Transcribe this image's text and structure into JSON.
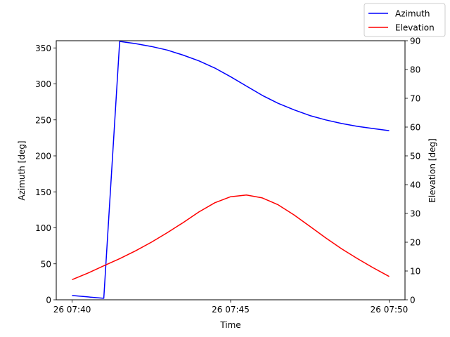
{
  "chart_data": {
    "type": "line",
    "title": "",
    "xlabel": "Time",
    "ylabel_left": "Azimuth [deg]",
    "ylabel_right": "Elevation [deg]",
    "x_ticks": [
      "26 07:40",
      "26 07:45",
      "26 07:50"
    ],
    "x_range_minutes": [
      -0.5,
      10.5
    ],
    "y_left_range": [
      0,
      360
    ],
    "y_left_ticks": [
      "0",
      "50",
      "100",
      "150",
      "200",
      "250",
      "300",
      "350"
    ],
    "y_right_range": [
      0,
      90
    ],
    "y_right_ticks": [
      "0",
      "10",
      "20",
      "30",
      "40",
      "50",
      "60",
      "70",
      "80",
      "90"
    ],
    "grid": false,
    "legend_position": "top-right, outside axes",
    "series": [
      {
        "name": "Azimuth",
        "axis": "left",
        "color": "#0000ff",
        "x_minutes": [
          0,
          1,
          1.5,
          2,
          2.5,
          3,
          3.5,
          4,
          4.5,
          5,
          5.5,
          6,
          6.5,
          7,
          7.5,
          8,
          8.5,
          9,
          9.5,
          10
        ],
        "values": [
          6,
          2,
          359,
          356,
          352,
          347,
          340,
          332,
          322,
          310,
          297,
          284,
          273,
          264,
          256,
          250,
          245,
          241,
          238,
          235
        ]
      },
      {
        "name": "Elevation",
        "axis": "right",
        "color": "#ff0000",
        "x_minutes": [
          0,
          0.5,
          1,
          1.5,
          2,
          2.5,
          3,
          3.5,
          4,
          4.5,
          5,
          5.5,
          6,
          6.5,
          7,
          7.5,
          8,
          8.5,
          9,
          9.5,
          10
        ],
        "values": [
          7,
          9.3,
          11.8,
          14.3,
          17,
          20,
          23.3,
          26.8,
          30.5,
          33.7,
          35.8,
          36.4,
          35.4,
          33,
          29.5,
          25.5,
          21.5,
          17.7,
          14.3,
          11.1,
          8.1
        ]
      }
    ]
  }
}
